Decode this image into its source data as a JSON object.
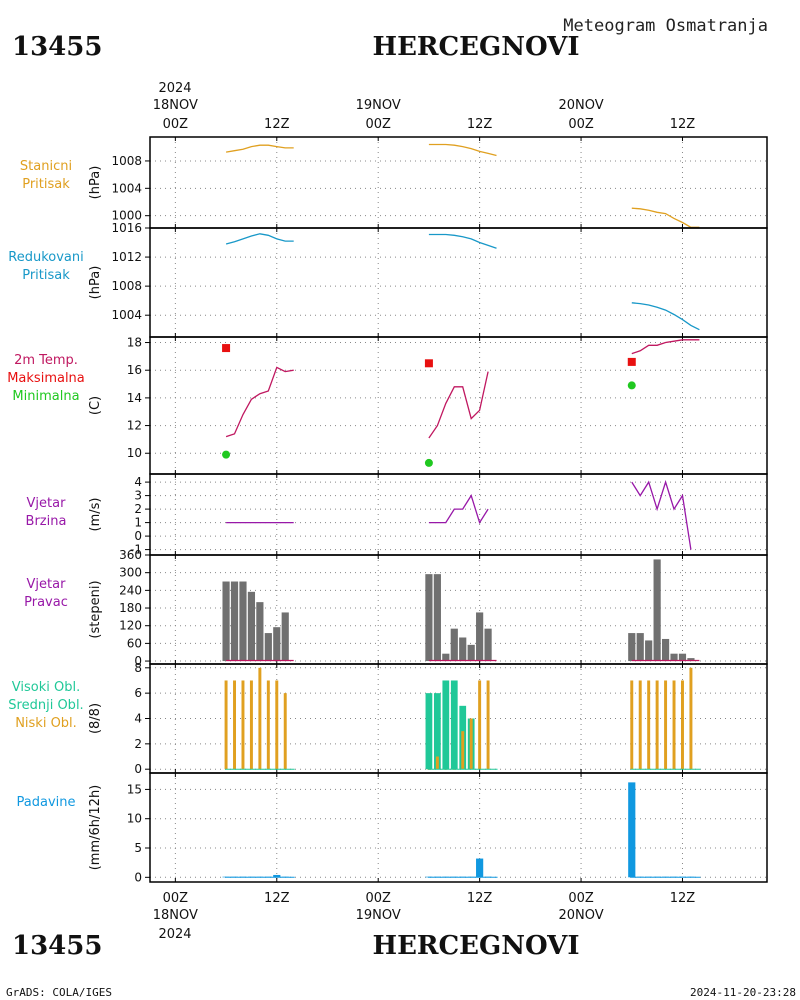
{
  "header": {
    "station_id": "13455",
    "station_name": "HERCEGNOVI",
    "meteogram_title": "Meteogram Osmatranja"
  },
  "footer": {
    "credit": "GrADS: COLA/IGES",
    "timestamp": "2024-11-20-23:28"
  },
  "time_axis": {
    "year": "2024",
    "ticks": [
      {
        "hour": 0,
        "label": "00Z",
        "date": "18NOV"
      },
      {
        "hour": 12,
        "label": "12Z",
        "date": ""
      },
      {
        "hour": 24,
        "label": "00Z",
        "date": "19NOV"
      },
      {
        "hour": 36,
        "label": "12Z",
        "date": ""
      },
      {
        "hour": 48,
        "label": "00Z",
        "date": "20NOV"
      },
      {
        "hour": 60,
        "label": "12Z",
        "date": ""
      }
    ],
    "range_hours": [
      -3,
      70
    ]
  },
  "colors": {
    "station_pressure": "#e0a020",
    "reduced_pressure": "#1898c8",
    "temperature": "#c01860",
    "tmax": "#e81010",
    "tmin": "#20c820",
    "wind": "#9818a8",
    "wind_dir": "#707070",
    "cloud_high": "#20c898",
    "cloud_mid": "#20c898",
    "cloud_low": "#e0a020",
    "precip": "#1098e0"
  },
  "chart_data": [
    {
      "id": "station-pressure",
      "type": "line",
      "side_labels": [
        {
          "text": "Stanicni",
          "color": "#e0a020"
        },
        {
          "text": "Pritisak",
          "color": "#e0a020"
        }
      ],
      "ylabel": "(hPa)",
      "ylim": [
        998.2,
        1011.5
      ],
      "yticks": [
        1000,
        1004,
        1008
      ],
      "series": [
        {
          "color": "#e0a020",
          "points": [
            [
              6,
              1009.3
            ],
            [
              7,
              1009.5
            ],
            [
              8,
              1009.7
            ],
            [
              9,
              1010.1
            ],
            [
              10,
              1010.3
            ],
            [
              11,
              1010.3
            ],
            [
              12,
              1010.1
            ],
            [
              13,
              1009.9
            ],
            [
              14,
              1009.9
            ]
          ]
        },
        {
          "color": "#e0a020",
          "points": [
            [
              30,
              1010.4
            ],
            [
              31,
              1010.4
            ],
            [
              32,
              1010.4
            ],
            [
              33,
              1010.3
            ],
            [
              34,
              1010.1
            ],
            [
              35,
              1009.8
            ],
            [
              36,
              1009.4
            ],
            [
              37,
              1009.1
            ],
            [
              38,
              1008.8
            ]
          ]
        },
        {
          "color": "#e0a020",
          "points": [
            [
              54,
              1001.1
            ],
            [
              55,
              1001.0
            ],
            [
              56,
              1000.8
            ],
            [
              57,
              1000.5
            ],
            [
              58,
              1000.3
            ],
            [
              59,
              999.6
            ],
            [
              60,
              999.0
            ],
            [
              61,
              998.3
            ],
            [
              62,
              998.3
            ]
          ]
        }
      ]
    },
    {
      "id": "reduced-pressure",
      "type": "line",
      "side_labels": [
        {
          "text": "Redukovani",
          "color": "#1898c8"
        },
        {
          "text": "Pritisak",
          "color": "#1898c8"
        }
      ],
      "ylabel": "(hPa)",
      "ylim": [
        1001.0,
        1016.0
      ],
      "yticks": [
        1004,
        1008,
        1012,
        1016
      ],
      "series": [
        {
          "color": "#1898c8",
          "points": [
            [
              6,
              1013.8
            ],
            [
              7,
              1014.1
            ],
            [
              8,
              1014.5
            ],
            [
              9,
              1014.9
            ],
            [
              10,
              1015.2
            ],
            [
              11,
              1015.0
            ],
            [
              12,
              1014.5
            ],
            [
              13,
              1014.2
            ],
            [
              14,
              1014.2
            ]
          ]
        },
        {
          "color": "#1898c8",
          "points": [
            [
              30,
              1015.1
            ],
            [
              31,
              1015.1
            ],
            [
              32,
              1015.1
            ],
            [
              33,
              1015.0
            ],
            [
              34,
              1014.8
            ],
            [
              35,
              1014.5
            ],
            [
              36,
              1014.0
            ],
            [
              37,
              1013.6
            ],
            [
              38,
              1013.2
            ]
          ]
        },
        {
          "color": "#1898c8",
          "points": [
            [
              54,
              1005.7
            ],
            [
              55,
              1005.6
            ],
            [
              56,
              1005.4
            ],
            [
              57,
              1005.1
            ],
            [
              58,
              1004.7
            ],
            [
              59,
              1004.1
            ],
            [
              60,
              1003.4
            ],
            [
              61,
              1002.6
            ],
            [
              62,
              1002.0
            ]
          ]
        }
      ]
    },
    {
      "id": "temperature",
      "type": "line",
      "side_labels": [
        {
          "text": "2m Temp.",
          "color": "#c01860"
        },
        {
          "text": "Maksimalna",
          "color": "#e81010"
        },
        {
          "text": "Minimalna",
          "color": "#20c820"
        }
      ],
      "ylabel": "(C)",
      "ylim": [
        8.5,
        18.4
      ],
      "yticks": [
        10,
        12,
        14,
        16,
        18
      ],
      "series": [
        {
          "color": "#c01860",
          "points": [
            [
              6,
              11.2
            ],
            [
              7,
              11.4
            ],
            [
              8,
              12.8
            ],
            [
              9,
              13.9
            ],
            [
              10,
              14.3
            ],
            [
              11,
              14.5
            ],
            [
              12,
              16.2
            ],
            [
              13,
              15.9
            ],
            [
              14,
              16.0
            ]
          ]
        },
        {
          "color": "#c01860",
          "points": [
            [
              30,
              11.1
            ],
            [
              31,
              12.0
            ],
            [
              32,
              13.6
            ],
            [
              33,
              14.8
            ],
            [
              34,
              14.8
            ],
            [
              35,
              12.5
            ],
            [
              36,
              13.1
            ],
            [
              37,
              15.9
            ]
          ]
        },
        {
          "color": "#c01860",
          "points": [
            [
              54,
              17.2
            ],
            [
              55,
              17.4
            ],
            [
              56,
              17.8
            ],
            [
              57,
              17.8
            ],
            [
              58,
              18.0
            ],
            [
              59,
              18.1
            ],
            [
              60,
              18.2
            ],
            [
              61,
              18.2
            ],
            [
              62,
              18.2
            ]
          ]
        }
      ],
      "markers": [
        {
          "kind": "square",
          "color": "#e81010",
          "points": [
            [
              6,
              17.6
            ],
            [
              30,
              16.5
            ],
            [
              54,
              16.6
            ]
          ]
        },
        {
          "kind": "circle",
          "color": "#20c820",
          "points": [
            [
              6,
              9.9
            ],
            [
              30,
              9.3
            ],
            [
              54,
              14.9
            ]
          ]
        }
      ]
    },
    {
      "id": "wind-speed",
      "type": "line",
      "side_labels": [
        {
          "text": "Vjetar",
          "color": "#9818a8"
        },
        {
          "text": "Brzina",
          "color": "#9818a8"
        }
      ],
      "ylabel": "(m/s)",
      "ylim": [
        -1.4,
        4.6
      ],
      "yticks": [
        -1,
        0,
        1,
        2,
        3,
        4
      ],
      "series": [
        {
          "color": "#9818a8",
          "points": [
            [
              6,
              1
            ],
            [
              7,
              1
            ],
            [
              8,
              1
            ],
            [
              9,
              1
            ],
            [
              10,
              1
            ],
            [
              11,
              1
            ],
            [
              12,
              1
            ],
            [
              13,
              1
            ],
            [
              14,
              1
            ]
          ]
        },
        {
          "color": "#9818a8",
          "points": [
            [
              30,
              1
            ],
            [
              31,
              1
            ],
            [
              32,
              1
            ],
            [
              33,
              2
            ],
            [
              34,
              2
            ],
            [
              35,
              3
            ],
            [
              36,
              1
            ],
            [
              37,
              2
            ]
          ]
        },
        {
          "color": "#9818a8",
          "points": [
            [
              54,
              4
            ],
            [
              55,
              3
            ],
            [
              56,
              4
            ],
            [
              57,
              2
            ],
            [
              58,
              4
            ],
            [
              59,
              2
            ],
            [
              60,
              3
            ],
            [
              61,
              -1
            ]
          ]
        }
      ]
    },
    {
      "id": "wind-direction",
      "type": "bar",
      "side_labels": [
        {
          "text": "Vjetar",
          "color": "#9818a8"
        },
        {
          "text": "Pravac",
          "color": "#9818a8"
        }
      ],
      "ylabel": "(stepeni)",
      "ylim": [
        -10,
        360
      ],
      "yticks": [
        0,
        60,
        120,
        180,
        240,
        300,
        360
      ],
      "bar_width_hours": 0.85,
      "bars": [
        {
          "color": "#707070",
          "points": [
            [
              6,
              270
            ],
            [
              7,
              270
            ],
            [
              8,
              270
            ],
            [
              9,
              235
            ],
            [
              10,
              200
            ],
            [
              11,
              95
            ],
            [
              12,
              115
            ],
            [
              13,
              165
            ],
            [
              30,
              295
            ],
            [
              31,
              295
            ],
            [
              32,
              25
            ],
            [
              33,
              110
            ],
            [
              34,
              80
            ],
            [
              35,
              55
            ],
            [
              36,
              165
            ],
            [
              37,
              110
            ],
            [
              54,
              95
            ],
            [
              55,
              95
            ],
            [
              56,
              70
            ],
            [
              57,
              345
            ],
            [
              58,
              75
            ],
            [
              59,
              25
            ],
            [
              60,
              25
            ],
            [
              61,
              10
            ]
          ]
        }
      ],
      "baseline_line": {
        "color": "#c01860",
        "segments": [
          [
            6,
            14
          ],
          [
            30,
            38
          ],
          [
            54,
            62
          ]
        ],
        "value": 2
      }
    },
    {
      "id": "clouds",
      "type": "bar",
      "side_labels": [
        {
          "text": "Visoki Obl.",
          "color": "#20c898"
        },
        {
          "text": "Srednji Obl.",
          "color": "#20c898"
        },
        {
          "text": "Niski Obl.",
          "color": "#e0a020"
        }
      ],
      "ylabel": "(8/8)",
      "ylim": [
        -0.3,
        8.3
      ],
      "yticks": [
        0,
        2,
        4,
        6,
        8
      ],
      "bar_width_hours": 0.8,
      "bars": [
        {
          "color": "#20c898",
          "width_hours": 0.8,
          "points": [
            [
              30,
              6
            ],
            [
              31,
              6
            ],
            [
              32,
              7
            ],
            [
              33,
              7
            ],
            [
              34,
              5
            ],
            [
              35,
              4
            ]
          ]
        },
        {
          "color": "#e0a020",
          "width_hours": 0.35,
          "points": [
            [
              6,
              7
            ],
            [
              7,
              7
            ],
            [
              8,
              7
            ],
            [
              9,
              7
            ],
            [
              10,
              8
            ],
            [
              11,
              7
            ],
            [
              12,
              7
            ],
            [
              13,
              6
            ],
            [
              30,
              0
            ],
            [
              31,
              1
            ],
            [
              32,
              0
            ],
            [
              33,
              0
            ],
            [
              34,
              3
            ],
            [
              35,
              4
            ],
            [
              36,
              7
            ],
            [
              37,
              7
            ],
            [
              54,
              7
            ],
            [
              55,
              7
            ],
            [
              56,
              7
            ],
            [
              57,
              7
            ],
            [
              58,
              7
            ],
            [
              59,
              7
            ],
            [
              60,
              7
            ],
            [
              61,
              8
            ]
          ]
        }
      ]
    },
    {
      "id": "precipitation",
      "type": "bar",
      "side_labels": [
        {
          "text": "Padavine",
          "color": "#1098e0"
        }
      ],
      "ylabel": "(mm/6h/12h)",
      "ylim": [
        -0.8,
        17.8
      ],
      "yticks": [
        0,
        5,
        10,
        15
      ],
      "bar_width_hours": 0.85,
      "bars": [
        {
          "color": "#1098e0",
          "points": [
            [
              6,
              0.1
            ],
            [
              7,
              0.1
            ],
            [
              8,
              0.1
            ],
            [
              9,
              0.1
            ],
            [
              10,
              0.1
            ],
            [
              11,
              0.1
            ],
            [
              12,
              0.4
            ],
            [
              13,
              0.1
            ],
            [
              30,
              0.1
            ],
            [
              31,
              0.1
            ],
            [
              32,
              0.1
            ],
            [
              33,
              0.1
            ],
            [
              34,
              0.1
            ],
            [
              35,
              0.1
            ],
            [
              36,
              3.2
            ],
            [
              37,
              0.1
            ],
            [
              54,
              16.2
            ],
            [
              55,
              0.1
            ],
            [
              56,
              0.1
            ],
            [
              57,
              0.1
            ],
            [
              58,
              0.1
            ],
            [
              59,
              0.1
            ],
            [
              60,
              0.1
            ],
            [
              61,
              0.1
            ]
          ]
        }
      ]
    }
  ]
}
